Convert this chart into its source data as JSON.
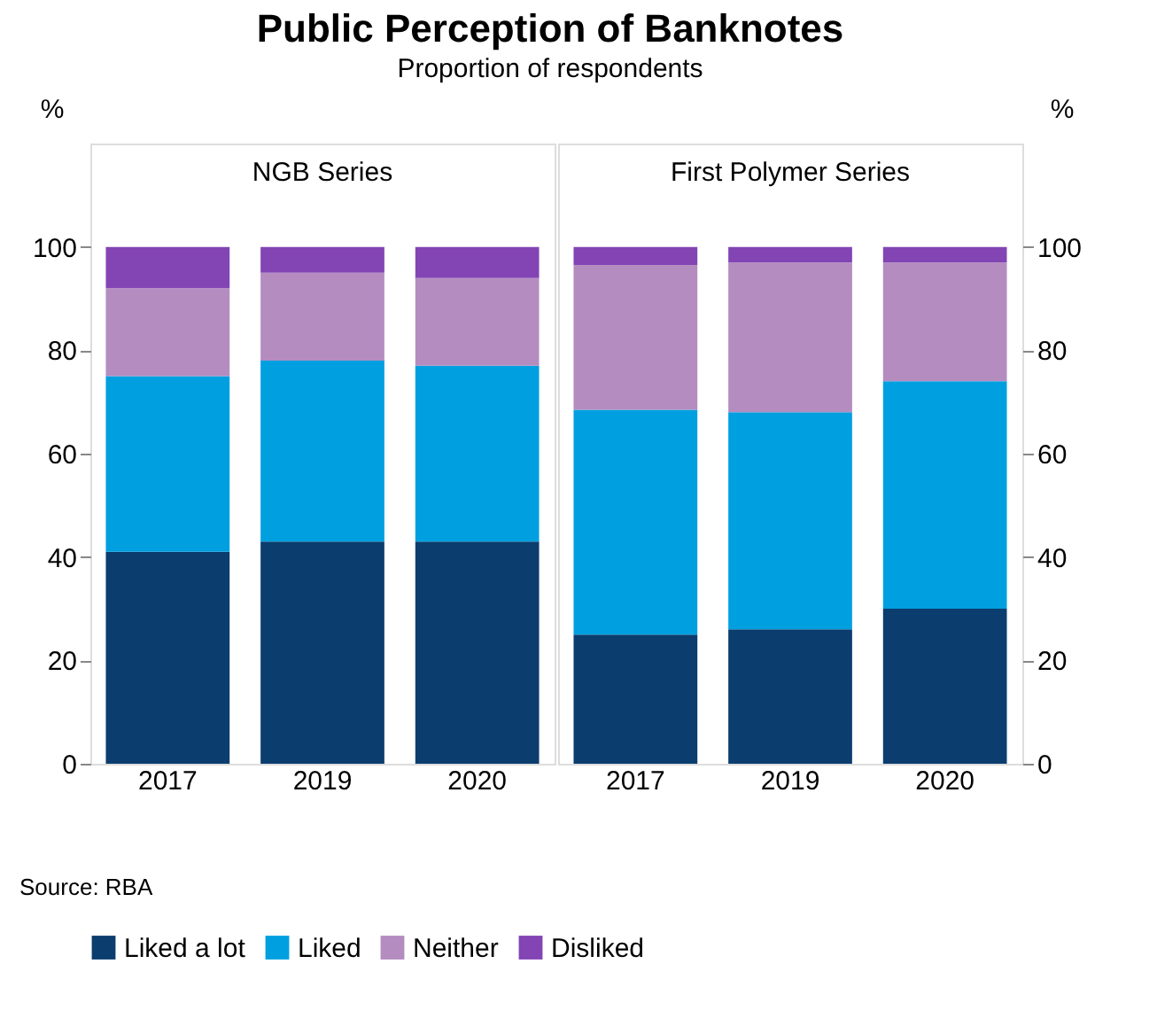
{
  "chart_data": [
    {
      "type": "bar",
      "stacked": true,
      "title": "NGB Series",
      "categories": [
        "2017",
        "2019",
        "2020"
      ],
      "ylabel": "%",
      "ylim": [
        0,
        120
      ],
      "yticks": [
        0,
        20,
        40,
        60,
        80,
        100
      ],
      "grid": false,
      "legend": "bottom",
      "annotations": [
        "Public Perception of Banknotes",
        "Proportion of respondents",
        "Source:  RBA"
      ],
      "series": [
        {
          "name": "Liked a lot",
          "color": "#0b3d6e",
          "values": [
            41,
            43,
            43
          ]
        },
        {
          "name": "Liked",
          "color": "#00a0e0",
          "values": [
            34,
            35,
            34
          ]
        },
        {
          "name": "Neither",
          "color": "#b48cc0",
          "values": [
            17,
            17,
            17
          ]
        },
        {
          "name": "Disliked",
          "color": "#8344b4",
          "values": [
            8,
            5,
            6
          ]
        }
      ]
    },
    {
      "type": "bar",
      "stacked": true,
      "title": "First Polymer Series",
      "categories": [
        "2017",
        "2019",
        "2020"
      ],
      "ylabel": "%",
      "ylim": [
        0,
        120
      ],
      "yticks": [
        0,
        20,
        40,
        60,
        80,
        100
      ],
      "grid": false,
      "series": [
        {
          "name": "Liked a lot",
          "color": "#0b3d6e",
          "values": [
            25,
            26,
            30
          ]
        },
        {
          "name": "Liked",
          "color": "#00a0e0",
          "values": [
            43.5,
            42,
            44
          ]
        },
        {
          "name": "Neither",
          "color": "#b48cc0",
          "values": [
            28,
            29,
            23
          ]
        },
        {
          "name": "Disliked",
          "color": "#8344b4",
          "values": [
            3.5,
            3,
            3
          ]
        }
      ]
    }
  ]
}
